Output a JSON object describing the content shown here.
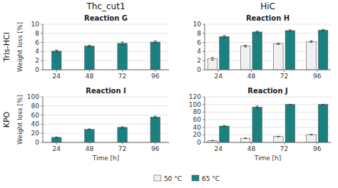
{
  "chart_data": [
    {
      "type": "bar",
      "title": "Reaction G",
      "annotations": [
        "Thc_cut1",
        "Tris-HCl"
      ],
      "y_label": "Weight loss [%]",
      "x": [
        24,
        48,
        72,
        96
      ],
      "xlim": [
        14,
        106
      ],
      "xticks": [
        24,
        48,
        72,
        96
      ],
      "ylim": [
        0,
        10
      ],
      "yticks": [
        0,
        2,
        4,
        6,
        8,
        10
      ],
      "series": [
        {
          "name": "65 °C",
          "color": "#1a8080",
          "values": [
            4.1,
            5.2,
            5.8,
            6.1
          ],
          "errors": [
            0.25,
            0.2,
            0.3,
            0.25
          ]
        }
      ]
    },
    {
      "type": "bar",
      "title": "Reaction H",
      "annotations": [
        "HiC"
      ],
      "legend": "bottom",
      "x": [
        24,
        48,
        72,
        96
      ],
      "xlim": [
        14,
        106
      ],
      "xticks": [
        24,
        48,
        72,
        96
      ],
      "ylim": [
        0,
        10
      ],
      "yticks": [
        0,
        2,
        4,
        6,
        8,
        10
      ],
      "series": [
        {
          "name": "50 °C",
          "color": "#f0f0f0",
          "values": [
            2.4,
            5.2,
            5.7,
            6.2
          ],
          "errors": [
            0.3,
            0.2,
            0.15,
            0.2
          ]
        },
        {
          "name": "65 °C",
          "color": "#1a8080",
          "values": [
            7.3,
            8.3,
            8.6,
            8.7
          ],
          "errors": [
            0.25,
            0.2,
            0.18,
            0.18
          ]
        }
      ]
    },
    {
      "type": "bar",
      "title": "Reaction I",
      "annotations": [
        "KPO"
      ],
      "y_label": "Weight loss [%]",
      "x_label": "Time [h]",
      "x": [
        24,
        48,
        72,
        96
      ],
      "xlim": [
        14,
        106
      ],
      "xticks": [
        24,
        48,
        72,
        96
      ],
      "ylim": [
        0,
        100
      ],
      "yticks": [
        0,
        20,
        40,
        60,
        80,
        100
      ],
      "series": [
        {
          "name": "65 °C",
          "color": "#1a8080",
          "values": [
            11.0,
            28.5,
            33.0,
            55.5
          ],
          "errors": [
            1.0,
            1.2,
            1.5,
            2.0
          ]
        }
      ]
    },
    {
      "type": "bar",
      "title": "Reaction J",
      "x_label": "Time [h]",
      "x": [
        24,
        48,
        72,
        96
      ],
      "xlim": [
        14,
        106
      ],
      "xticks": [
        24,
        48,
        72,
        96
      ],
      "ylim": [
        0,
        120
      ],
      "yticks": [
        0,
        20,
        40,
        60,
        80,
        100,
        120
      ],
      "series": [
        {
          "name": "50 °C",
          "color": "#f0f0f0",
          "values": [
            5.0,
            11.0,
            15.5,
            20.5
          ],
          "errors": [
            0.5,
            0.6,
            0.5,
            0.6
          ]
        },
        {
          "name": "65 °C",
          "color": "#1a8080",
          "values": [
            43.0,
            93.0,
            100.0,
            100.0
          ],
          "errors": [
            1.5,
            3.0,
            0.5,
            0.5
          ]
        }
      ]
    }
  ]
}
